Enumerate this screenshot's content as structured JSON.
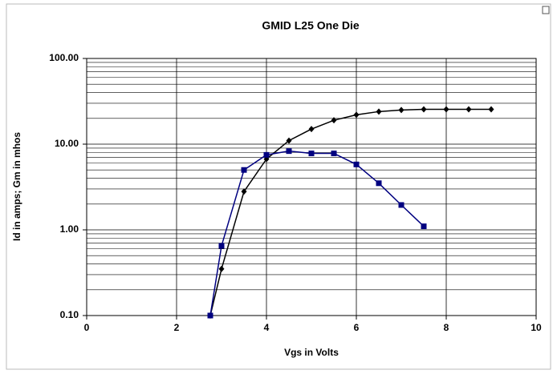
{
  "chart_data": {
    "type": "line",
    "title": "GMID L25 One Die",
    "x_label": "Vgs  in Volts",
    "y_label": "Id in amps;  Gm in mhos",
    "log_y": true,
    "grid": true,
    "minor_grid": true,
    "xlim": [
      0,
      10
    ],
    "xticks": [
      0,
      2,
      4,
      6,
      8,
      10
    ],
    "ylim": [
      0.1,
      100
    ],
    "yticks": [
      {
        "value": 0.1,
        "label": "0.10"
      },
      {
        "value": 1,
        "label": "1.00"
      },
      {
        "value": 10,
        "label": "10.00"
      },
      {
        "value": 100,
        "label": "100.00"
      }
    ],
    "series": [
      {
        "color": "#000000",
        "marker": "diamond",
        "x": [
          2.75,
          3.0,
          3.5,
          4.0,
          4.5,
          5.0,
          5.5,
          6.0,
          6.5,
          7.0,
          7.5,
          8.0,
          8.5,
          9.0
        ],
        "values": [
          0.1,
          0.35,
          2.8,
          6.7,
          11,
          15,
          19,
          22,
          24,
          25,
          25.5,
          25.5,
          25.5,
          25.5
        ]
      },
      {
        "color": "#000080",
        "marker": "square",
        "x": [
          2.75,
          3.0,
          3.5,
          4.0,
          4.5,
          5.0,
          5.5,
          6.0,
          6.5,
          7.0,
          7.5
        ],
        "values": [
          0.1,
          0.65,
          5.0,
          7.5,
          8.3,
          7.8,
          7.8,
          5.8,
          3.5,
          1.95,
          1.1
        ]
      }
    ]
  }
}
